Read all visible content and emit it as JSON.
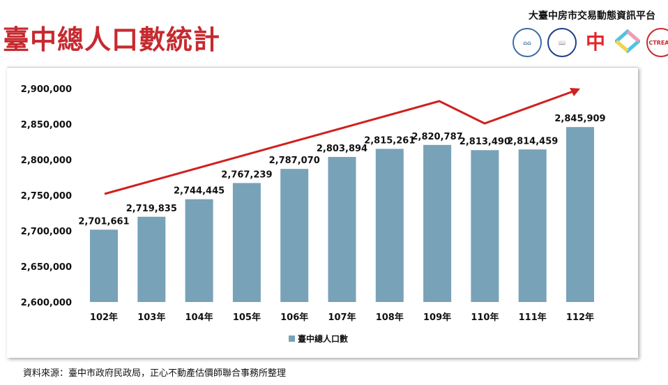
{
  "header": {
    "title": "臺中總人口數統計",
    "platform": "大臺中房市交易動態資訊平台",
    "logos": [
      "house-logo",
      "school-logo",
      "zhong-logo",
      "diamond-logo",
      "CTREAA"
    ]
  },
  "chart_data": {
    "type": "bar",
    "categories": [
      "102年",
      "103年",
      "104年",
      "105年",
      "106年",
      "107年",
      "108年",
      "109年",
      "110年",
      "111年",
      "112年"
    ],
    "series": [
      {
        "name": "臺中總人口數",
        "color": "#78a2b8",
        "values": [
          2701661,
          2719835,
          2744445,
          2767239,
          2787070,
          2803894,
          2815261,
          2820787,
          2813490,
          2814459,
          2845909
        ]
      }
    ],
    "data_labels": [
      "2,701,661",
      "2,719,835",
      "2,744,445",
      "2,767,239",
      "2,787,070",
      "2,803,894",
      "2,815,261",
      "2,820,787",
      "2,813,490",
      "2,814,459",
      "2,845,909"
    ],
    "ylim": [
      2600000,
      2900000
    ],
    "yticks": [
      "2,600,000",
      "2,650,000",
      "2,700,000",
      "2,750,000",
      "2,800,000",
      "2,850,000",
      "2,900,000"
    ],
    "legend": "bottom",
    "grid": false,
    "trend_color": "#d0201f"
  },
  "footer": "資料來源：臺中市政府民政局，正心不動產估價師聯合事務所整理"
}
